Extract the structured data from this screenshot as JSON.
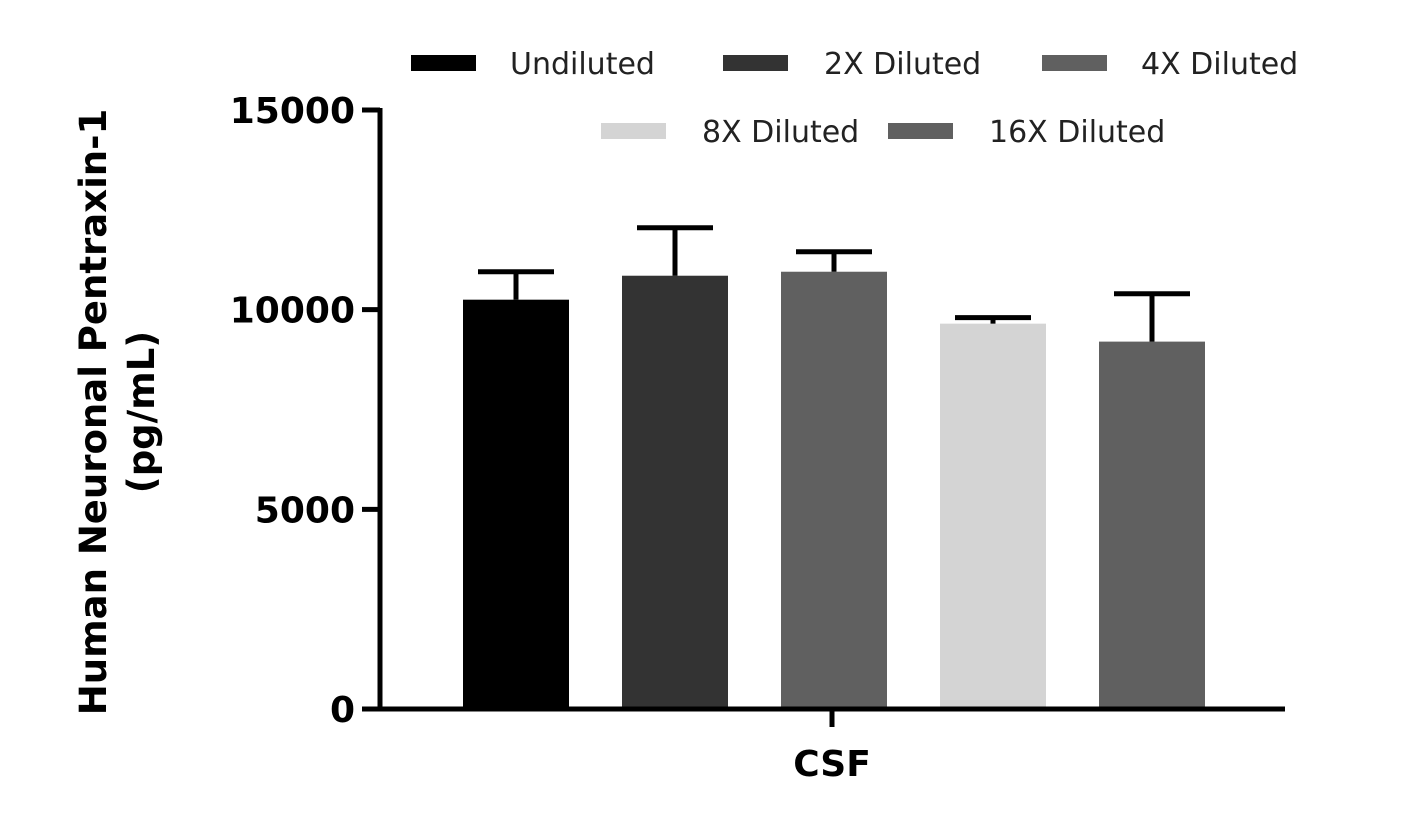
{
  "chart_data": {
    "type": "bar",
    "categories": [
      "CSF"
    ],
    "series": [
      {
        "name": "Undiluted",
        "values": [
          10250
        ],
        "error": [
          700
        ],
        "color": "#000000"
      },
      {
        "name": "2X Diluted",
        "values": [
          10850
        ],
        "error": [
          1200
        ],
        "color": "#333333"
      },
      {
        "name": "4X Diluted",
        "values": [
          10950
        ],
        "error": [
          500
        ],
        "color": "#606060"
      },
      {
        "name": "8X Diluted",
        "values": [
          9650
        ],
        "error": [
          150
        ],
        "color": "#d4d4d4"
      },
      {
        "name": "16X Diluted",
        "values": [
          9200
        ],
        "error": [
          1200
        ],
        "color": "#606060"
      }
    ],
    "xlabel": "",
    "ylabel_line1": "Human Neuronal Pentraxin-1",
    "ylabel_line2": "(pg/mL)",
    "ylim": [
      0,
      15000
    ],
    "yticks": [
      0,
      5000,
      10000,
      15000
    ],
    "ytick_labels": [
      "0",
      "5000",
      "10000",
      "15000"
    ],
    "grid": false,
    "legend_position": "top"
  }
}
